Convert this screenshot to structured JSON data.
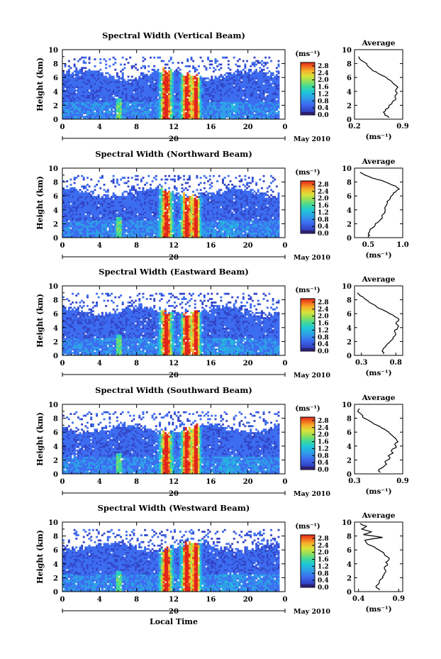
{
  "chart_data": [
    {
      "type": "heatmap",
      "title": "Spectral Width (Vertical Beam)",
      "ylabel": "Height (km)",
      "ylim": [
        0,
        10
      ],
      "xlim": [
        0,
        24
      ],
      "x_ticks": [
        "0",
        "4",
        "8",
        "12",
        "16",
        "20",
        "0"
      ],
      "y_ticks": [
        "0",
        "2",
        "4",
        "6",
        "8",
        "10"
      ],
      "date_day": "20",
      "month_label": "May 2010",
      "colorbar": {
        "unit": "(ms⁻¹)",
        "ticks": [
          "0.0",
          "0.4",
          "0.8",
          "1.2",
          "1.6",
          "2.0",
          "2.4",
          "2.8"
        ],
        "range": [
          0,
          3.0
        ]
      },
      "profile": {
        "title": "Average",
        "xlabel": "(ms⁻¹)",
        "xlim": [
          0.2,
          0.9
        ],
        "x_ticks": [
          "0.2",
          "0.9"
        ],
        "y_ticks": [
          "0",
          "2",
          "4",
          "6",
          "8",
          "10"
        ],
        "heights": [
          0.2,
          0.6,
          1.0,
          1.4,
          1.8,
          2.2,
          2.6,
          3.0,
          3.4,
          3.8,
          4.2,
          4.6,
          5.0,
          5.4,
          5.8,
          6.2,
          6.6,
          7.0,
          7.4,
          7.8,
          8.2,
          8.6,
          9.0
        ],
        "values": [
          0.7,
          0.64,
          0.62,
          0.65,
          0.7,
          0.74,
          0.76,
          0.8,
          0.79,
          0.82,
          0.8,
          0.83,
          0.78,
          0.74,
          0.68,
          0.62,
          0.54,
          0.46,
          0.42,
          0.38,
          0.34,
          0.28,
          0.26
        ]
      }
    },
    {
      "type": "heatmap",
      "title": "Spectral Width (Northward Beam)",
      "ylabel": "Height (km)",
      "ylim": [
        0,
        10
      ],
      "xlim": [
        0,
        24
      ],
      "x_ticks": [
        "0",
        "4",
        "8",
        "12",
        "16",
        "20",
        "0"
      ],
      "y_ticks": [
        "0",
        "2",
        "4",
        "6",
        "8",
        "10"
      ],
      "date_day": "20",
      "month_label": "May 2010",
      "colorbar": {
        "unit": "(ms⁻¹)",
        "ticks": [
          "0.0",
          "0.4",
          "0.8",
          "1.2",
          "1.6",
          "2.0",
          "2.4",
          "2.8"
        ],
        "range": [
          0,
          3.0
        ]
      },
      "profile": {
        "title": "Average",
        "xlabel": "(ms⁻¹)",
        "xlim": [
          0.3,
          1.0
        ],
        "x_ticks": [
          "0.5",
          "1.0"
        ],
        "y_ticks": [
          "0",
          "2",
          "4",
          "6",
          "8",
          "10"
        ],
        "heights": [
          0.2,
          0.6,
          1.0,
          1.4,
          1.8,
          2.2,
          2.6,
          3.0,
          3.4,
          3.8,
          4.2,
          4.6,
          5.0,
          5.4,
          5.8,
          6.2,
          6.6,
          7.0,
          7.4,
          7.8,
          8.2,
          8.6,
          9.0,
          9.4
        ],
        "values": [
          0.52,
          0.5,
          0.52,
          0.56,
          0.6,
          0.64,
          0.68,
          0.7,
          0.72,
          0.74,
          0.74,
          0.76,
          0.78,
          0.8,
          0.82,
          0.86,
          0.9,
          0.95,
          0.9,
          0.8,
          0.7,
          0.55,
          0.45,
          0.38
        ]
      }
    },
    {
      "type": "heatmap",
      "title": "Spectral Width (Eastward Beam)",
      "ylabel": "Height (km)",
      "ylim": [
        0,
        10
      ],
      "xlim": [
        0,
        24
      ],
      "x_ticks": [
        "0",
        "4",
        "8",
        "12",
        "16",
        "20",
        "0"
      ],
      "y_ticks": [
        "0",
        "2",
        "4",
        "6",
        "8",
        "10"
      ],
      "date_day": "20",
      "month_label": "May 2010",
      "colorbar": {
        "unit": "(ms⁻¹)",
        "ticks": [
          "0.0",
          "0.4",
          "0.8",
          "1.2",
          "1.6",
          "2.0",
          "2.4",
          "2.8"
        ],
        "range": [
          0,
          3.0
        ]
      },
      "profile": {
        "title": "Average",
        "xlabel": "(ms⁻¹)",
        "xlim": [
          0.2,
          0.9
        ],
        "x_ticks": [
          "0.3",
          "0.8"
        ],
        "y_ticks": [
          "0",
          "2",
          "4",
          "6",
          "8",
          "10"
        ],
        "heights": [
          0.2,
          0.6,
          1.0,
          1.4,
          1.8,
          2.2,
          2.6,
          3.0,
          3.4,
          3.8,
          4.2,
          4.6,
          5.0,
          5.4,
          5.8,
          6.2,
          6.6,
          7.0,
          7.4,
          7.8,
          8.2,
          8.6,
          9.0
        ],
        "values": [
          0.62,
          0.6,
          0.62,
          0.66,
          0.7,
          0.74,
          0.76,
          0.8,
          0.78,
          0.82,
          0.84,
          0.8,
          0.84,
          0.82,
          0.76,
          0.68,
          0.6,
          0.52,
          0.46,
          0.4,
          0.34,
          0.28,
          0.24
        ]
      }
    },
    {
      "type": "heatmap",
      "title": "Spectral Width (Southward Beam)",
      "ylabel": "Height (km)",
      "ylim": [
        0,
        10
      ],
      "xlim": [
        0,
        24
      ],
      "x_ticks": [
        "0",
        "4",
        "8",
        "12",
        "16",
        "20",
        "0"
      ],
      "y_ticks": [
        "0",
        "2",
        "4",
        "6",
        "8",
        "10"
      ],
      "date_day": "20",
      "month_label": "May 2010",
      "colorbar": {
        "unit": "(ms⁻¹)",
        "ticks": [
          "0.0",
          "0.4",
          "0.8",
          "1.2",
          "1.6",
          "2.0",
          "2.4",
          "2.8"
        ],
        "range": [
          0,
          3.0
        ]
      },
      "profile": {
        "title": "Average",
        "xlabel": "(ms⁻¹)",
        "xlim": [
          0.3,
          0.9
        ],
        "x_ticks": [
          "0.3",
          "0.9"
        ],
        "y_ticks": [
          "0",
          "2",
          "4",
          "6",
          "8",
          "10"
        ],
        "heights": [
          0.2,
          0.6,
          1.0,
          1.4,
          1.8,
          2.2,
          2.6,
          3.0,
          3.4,
          3.8,
          4.2,
          4.6,
          5.0,
          5.4,
          5.8,
          6.2,
          6.6,
          7.0,
          7.4,
          7.8,
          8.2,
          8.6,
          9.0,
          9.4
        ],
        "values": [
          0.62,
          0.6,
          0.66,
          0.7,
          0.68,
          0.74,
          0.72,
          0.78,
          0.76,
          0.82,
          0.8,
          0.84,
          0.82,
          0.78,
          0.74,
          0.7,
          0.64,
          0.58,
          0.52,
          0.46,
          0.4,
          0.38,
          0.34,
          0.36
        ]
      }
    },
    {
      "type": "heatmap",
      "title": "Spectral Width (Westward Beam)",
      "ylabel": "Height (km)",
      "ylim": [
        0,
        10
      ],
      "xlim": [
        0,
        24
      ],
      "x_ticks": [
        "0",
        "4",
        "8",
        "12",
        "16",
        "20",
        "0"
      ],
      "y_ticks": [
        "0",
        "2",
        "4",
        "6",
        "8",
        "10"
      ],
      "date_day": "20",
      "month_label": "May 2010",
      "xlabel": "Local Time",
      "colorbar": {
        "unit": "(ms⁻¹)",
        "ticks": [
          "0.0",
          "0.4",
          "0.8",
          "1.2",
          "1.6",
          "2.0",
          "2.4",
          "2.8"
        ],
        "range": [
          0,
          3.0
        ]
      },
      "profile": {
        "title": "Average",
        "xlabel": "(ms⁻¹)",
        "xlim": [
          0.35,
          0.95
        ],
        "x_ticks": [
          "0.4",
          "0.9"
        ],
        "y_ticks": [
          "0",
          "2",
          "4",
          "6",
          "8",
          "10"
        ],
        "heights": [
          0.2,
          0.6,
          1.0,
          1.4,
          1.8,
          2.2,
          2.6,
          3.0,
          3.4,
          3.8,
          4.2,
          4.6,
          5.0,
          5.4,
          5.8,
          6.2,
          6.6,
          7.0,
          7.4,
          7.8,
          8.2,
          8.6,
          9.0,
          9.4,
          9.8
        ],
        "values": [
          0.66,
          0.62,
          0.64,
          0.66,
          0.68,
          0.7,
          0.72,
          0.74,
          0.72,
          0.76,
          0.74,
          0.78,
          0.76,
          0.72,
          0.68,
          0.62,
          0.56,
          0.5,
          0.48,
          0.7,
          0.46,
          0.56,
          0.44,
          0.5,
          0.42
        ]
      }
    }
  ],
  "colors": {
    "colormap": [
      "#2b1f6e",
      "#3346c8",
      "#3c6cf0",
      "#2f9ee8",
      "#1fc7d8",
      "#3fd99a",
      "#8fe05a",
      "#d8e23a",
      "#f7b02a",
      "#f26a1e",
      "#e0261a"
    ]
  }
}
